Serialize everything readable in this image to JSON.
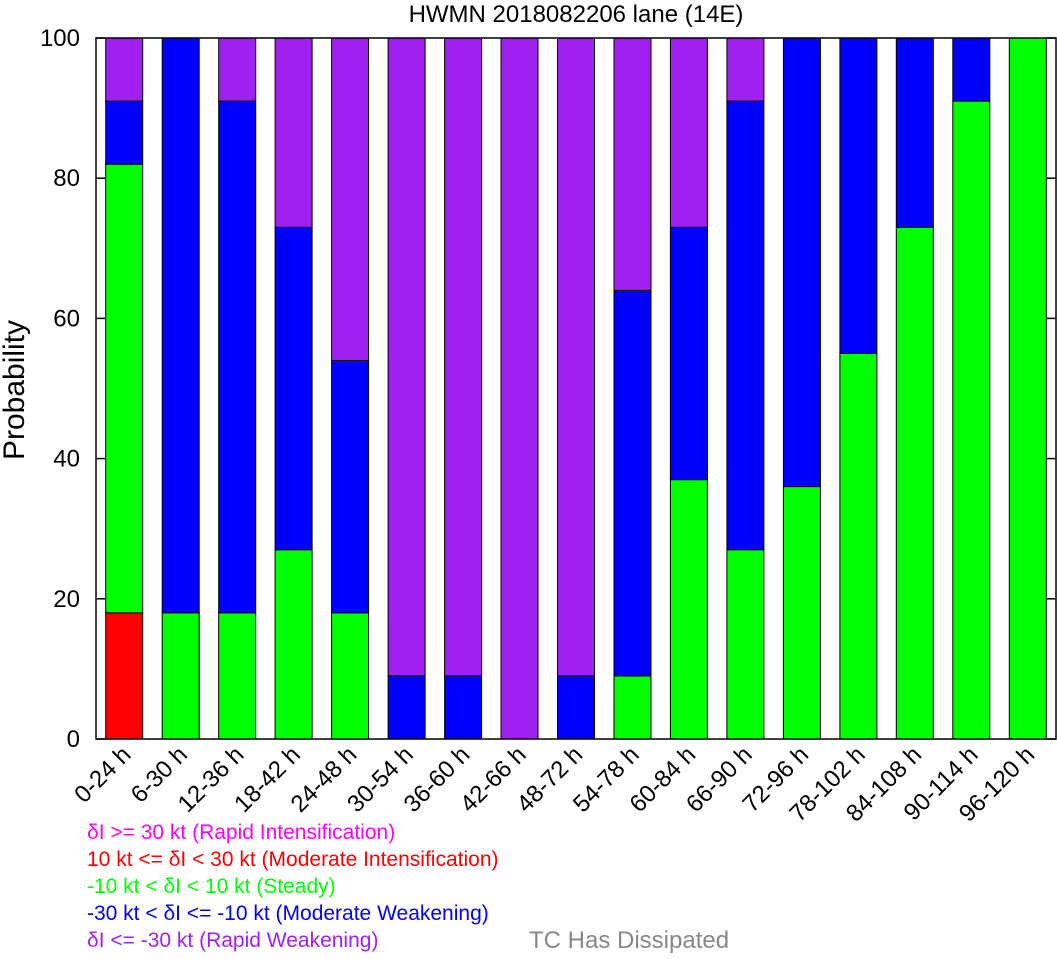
{
  "chart_data": {
    "type": "bar",
    "stacked": true,
    "title": "HWMN 2018082206 lane (14E)",
    "ylabel": "Probability",
    "xlabel": "",
    "ylim": [
      0,
      100
    ],
    "yticks": [
      "0",
      "20",
      "40",
      "60",
      "80",
      "100"
    ],
    "grid": false,
    "categories": [
      "0-24 h",
      "6-30 h",
      "12-36 h",
      "18-42 h",
      "24-48 h",
      "30-54 h",
      "36-60 h",
      "42-66 h",
      "48-72 h",
      "54-78 h",
      "60-84 h",
      "66-90 h",
      "72-96 h",
      "78-102 h",
      "84-108 h",
      "90-114 h",
      "96-120 h"
    ],
    "series": [
      {
        "key": "rapid_intensification",
        "color": "#ff00ff",
        "values": [
          0,
          0,
          0,
          0,
          0,
          0,
          0,
          0,
          0,
          0,
          0,
          0,
          0,
          0,
          0,
          0,
          0
        ]
      },
      {
        "key": "moderate_intensification",
        "color": "#ff0000",
        "values": [
          18,
          0,
          0,
          0,
          0,
          0,
          0,
          0,
          0,
          0,
          0,
          0,
          0,
          0,
          0,
          0,
          0
        ]
      },
      {
        "key": "steady",
        "color": "#00ff00",
        "values": [
          64,
          18,
          18,
          27,
          18,
          0,
          0,
          0,
          0,
          9,
          37,
          27,
          36,
          55,
          73,
          91,
          100
        ]
      },
      {
        "key": "moderate_weakening",
        "color": "#0000ff",
        "values": [
          9,
          82,
          73,
          46,
          36,
          9,
          9,
          0,
          9,
          55,
          36,
          64,
          64,
          45,
          27,
          9,
          0
        ]
      },
      {
        "key": "rapid_weakening",
        "color": "#a020f0",
        "values": [
          9,
          0,
          9,
          27,
          46,
          91,
          91,
          100,
          91,
          36,
          27,
          9,
          0,
          0,
          0,
          0,
          0
        ]
      }
    ],
    "legend": {
      "placement": "bottom-left",
      "entries": [
        {
          "label": "δI >= 30 kt (Rapid Intensification)",
          "color": "#ff00ff"
        },
        {
          "label": "10 kt <= δI < 30 kt (Moderate Intensification)",
          "color": "#ff0000"
        },
        {
          "label": "-10 kt < δI < 10 kt (Steady)",
          "color": "#00ff00"
        },
        {
          "label": "-30 kt < δI <= -10 kt (Moderate Weakening)",
          "color": "#0000ff"
        },
        {
          "label": "δI <= -30 kt (Rapid Weakening)",
          "color": "#a020f0"
        }
      ],
      "note": {
        "label": "TC Has Dissipated",
        "color": "#888888"
      }
    }
  }
}
